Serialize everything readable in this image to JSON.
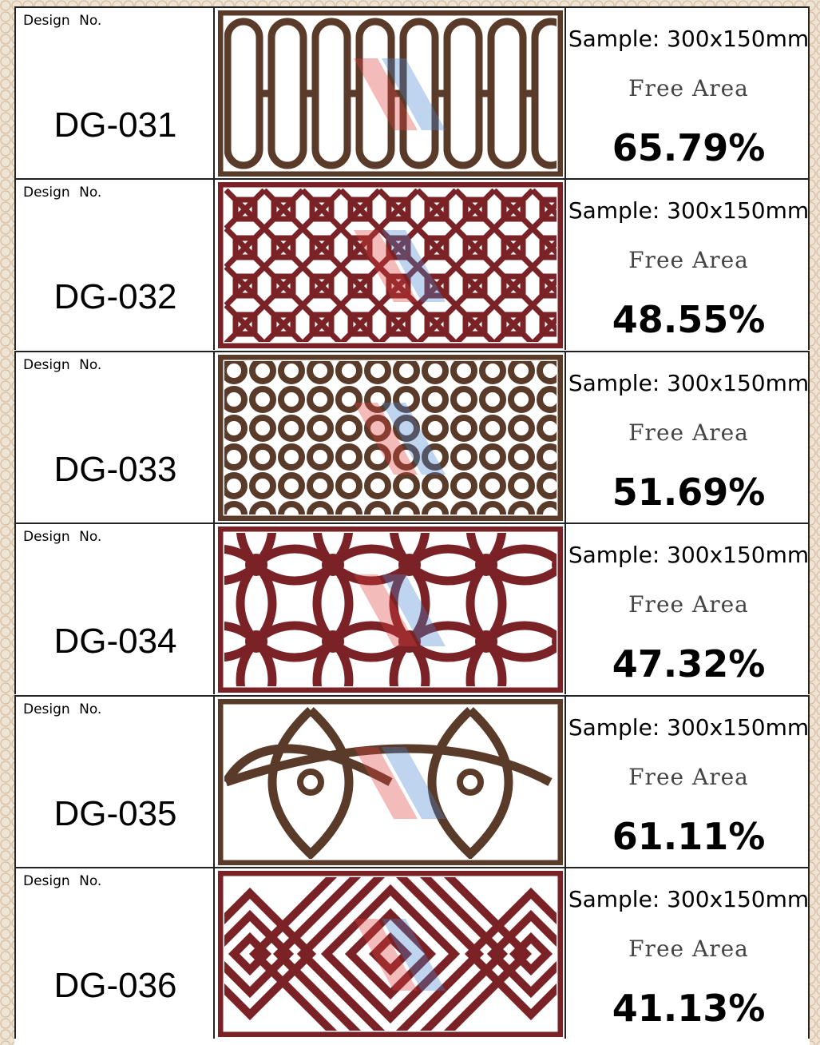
{
  "rows": [
    {
      "label": "Design No.",
      "code": "DG-031",
      "sample": "Sample: 300x150mm",
      "free_area_label": "Free Area",
      "free_area": "65.79%"
    },
    {
      "label": "Design No.",
      "code": "DG-032",
      "sample": "Sample: 300x150mm",
      "free_area_label": "Free Area",
      "free_area": "48.55%"
    },
    {
      "label": "Design No.",
      "code": "DG-033",
      "sample": "Sample: 300x150mm",
      "free_area_label": "Free Area",
      "free_area": "51.69%"
    },
    {
      "label": "Design No.",
      "code": "DG-034",
      "sample": "Sample: 300x150mm",
      "free_area_label": "Free Area",
      "free_area": "47.32%"
    },
    {
      "label": "Design No.",
      "code": "DG-035",
      "sample": "Sample: 300x150mm",
      "free_area_label": "Free Area",
      "free_area": "61.11%"
    },
    {
      "label": "Design No.",
      "code": "DG-036",
      "sample": "Sample: 300x150mm",
      "free_area_label": "Free Area",
      "free_area": "41.13%"
    }
  ]
}
